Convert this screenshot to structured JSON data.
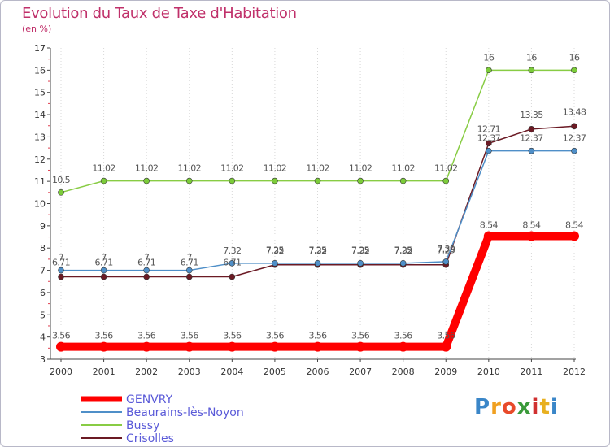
{
  "chart_data": {
    "type": "line",
    "title": "Evolution du Taux de Taxe d'Habitation",
    "subtitle": "(en %)",
    "x": [
      "2000",
      "2001",
      "2002",
      "2003",
      "2004",
      "2005",
      "2006",
      "2007",
      "2008",
      "2009",
      "2010",
      "2011",
      "2012"
    ],
    "ylim": [
      3,
      17
    ],
    "yticks": [
      3,
      4,
      5,
      6,
      7,
      8,
      9,
      10,
      11,
      12,
      13,
      14,
      15,
      16,
      17
    ],
    "grid": "vertical dotted",
    "legend_position": "bottom-left",
    "series": [
      {
        "name": "GENVRY",
        "color": "#ff0000",
        "values": [
          3.56,
          3.56,
          3.56,
          3.56,
          3.56,
          3.56,
          3.56,
          3.56,
          3.56,
          3.56,
          8.54,
          8.54,
          8.54
        ],
        "labels": [
          "3.56",
          "3.56",
          "3.56",
          "3.56",
          "3.56",
          "3.56",
          "3.56",
          "3.56",
          "3.56",
          "3.56",
          "8.54",
          "8.54",
          "8.54"
        ]
      },
      {
        "name": "Beaurains-lès-Noyon",
        "color": "#4f8fc8",
        "values": [
          7,
          7,
          7,
          7,
          7.32,
          7.32,
          7.32,
          7.32,
          7.32,
          7.39,
          12.37,
          12.37,
          12.37
        ],
        "labels": [
          "7",
          "7",
          "7",
          "7",
          "7.32",
          "7.32",
          "7.32",
          "7.32",
          "7.32",
          "7.39",
          "12.37",
          "12.37",
          "12.37"
        ]
      },
      {
        "name": "Bussy",
        "color": "#88cc44",
        "values": [
          10.5,
          11.02,
          11.02,
          11.02,
          11.02,
          11.02,
          11.02,
          11.02,
          11.02,
          11.02,
          16,
          16,
          16
        ],
        "labels": [
          "10.5",
          "11.02",
          "11.02",
          "11.02",
          "11.02",
          "11.02",
          "11.02",
          "11.02",
          "11.02",
          "11.02",
          "16",
          "16",
          "16"
        ]
      },
      {
        "name": "Crisolles",
        "color": "#6b1a24",
        "values": [
          6.71,
          6.71,
          6.71,
          6.71,
          6.71,
          7.25,
          7.25,
          7.25,
          7.25,
          7.25,
          12.71,
          13.35,
          13.48
        ],
        "labels": [
          "6.71",
          "6.71",
          "6.71",
          "6.71",
          "6.71",
          "7.25",
          "7.25",
          "7.25",
          "7.25",
          "7.25",
          "12.71",
          "13.35",
          "13.48"
        ]
      }
    ]
  },
  "logo": {
    "letters": [
      "P",
      "r",
      "o",
      "x",
      "i",
      "t",
      "i"
    ],
    "colors": [
      "#3a86c8",
      "#f0a020",
      "#e84a2a",
      "#3a9a3a",
      "#d03030",
      "#e8b020",
      "#3a86c8"
    ]
  }
}
